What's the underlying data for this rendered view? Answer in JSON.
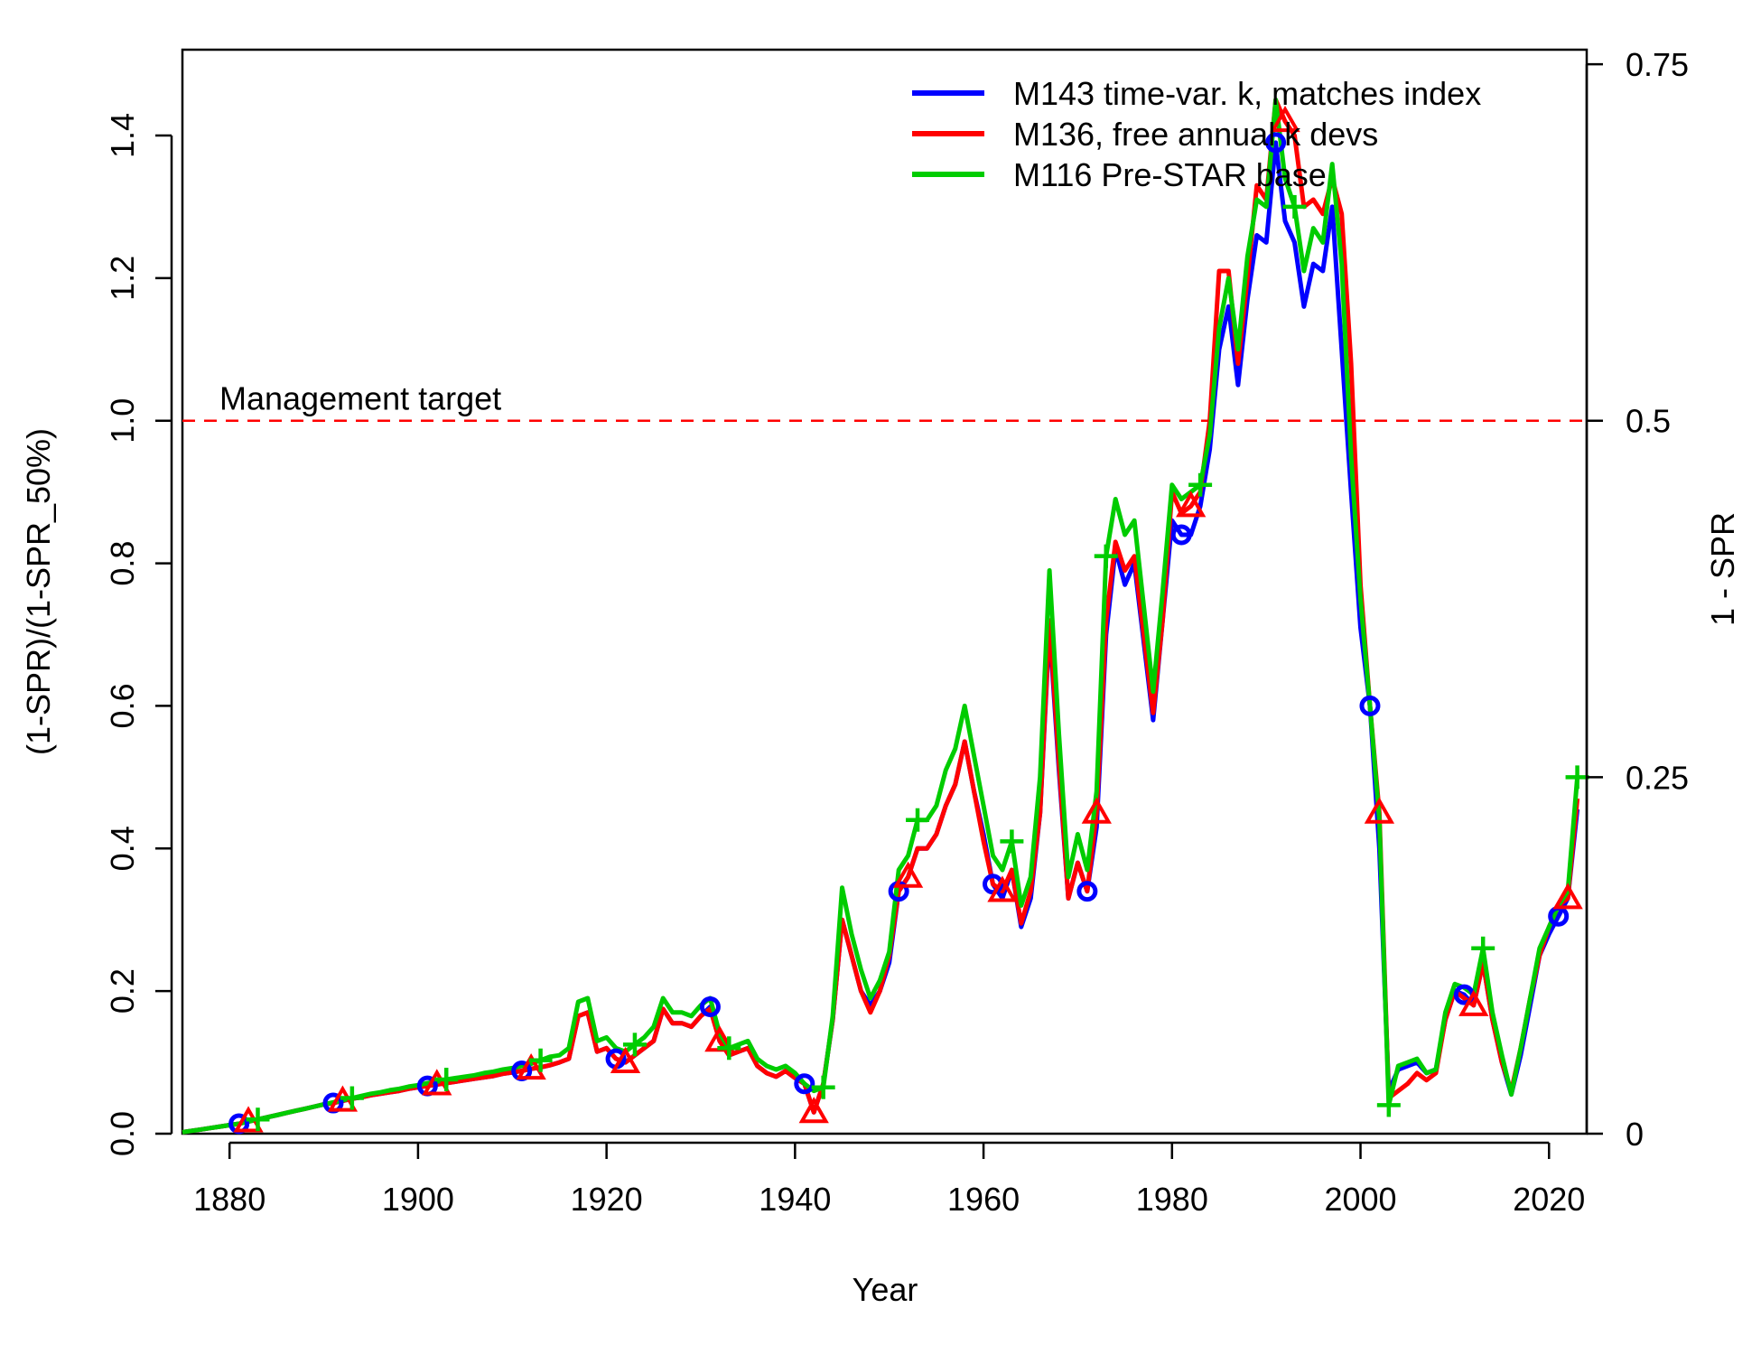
{
  "chart_data": {
    "type": "line",
    "xlabel": "Year",
    "ylabel": "(1-SPR)/(1-SPR_50%)",
    "y2label": "1 - SPR",
    "xlim": [
      1875,
      2024
    ],
    "ylim": [
      0,
      1.5
    ],
    "y2lim": [
      0,
      0.75
    ],
    "x_ticks": [
      "1880",
      "1900",
      "1920",
      "1940",
      "1960",
      "1980",
      "2000",
      "2020"
    ],
    "y_ticks": [
      "0.0",
      "0.2",
      "0.4",
      "0.6",
      "0.8",
      "1.0",
      "1.2",
      "1.4"
    ],
    "y2_ticks": [
      "0",
      "0.25",
      "0.5",
      "0.75"
    ],
    "reference_line": {
      "value": 1.0,
      "label": "Management target",
      "color": "#ff0000",
      "style": "dashed"
    },
    "legend_position": "top-right",
    "x": [
      1875,
      1876,
      1877,
      1878,
      1879,
      1880,
      1881,
      1882,
      1883,
      1884,
      1885,
      1886,
      1887,
      1888,
      1889,
      1890,
      1891,
      1892,
      1893,
      1894,
      1895,
      1896,
      1897,
      1898,
      1899,
      1900,
      1901,
      1902,
      1903,
      1904,
      1905,
      1906,
      1907,
      1908,
      1909,
      1910,
      1911,
      1912,
      1913,
      1914,
      1915,
      1916,
      1917,
      1918,
      1919,
      1920,
      1921,
      1922,
      1923,
      1924,
      1925,
      1926,
      1927,
      1928,
      1929,
      1930,
      1931,
      1932,
      1933,
      1934,
      1935,
      1936,
      1937,
      1938,
      1939,
      1940,
      1941,
      1942,
      1943,
      1944,
      1945,
      1946,
      1947,
      1948,
      1949,
      1950,
      1951,
      1952,
      1953,
      1954,
      1955,
      1956,
      1957,
      1958,
      1959,
      1960,
      1961,
      1962,
      1963,
      1964,
      1965,
      1966,
      1967,
      1968,
      1969,
      1970,
      1971,
      1972,
      1973,
      1974,
      1975,
      1976,
      1977,
      1978,
      1979,
      1980,
      1981,
      1982,
      1983,
      1984,
      1985,
      1986,
      1987,
      1988,
      1989,
      1990,
      1991,
      1992,
      1993,
      1994,
      1995,
      1996,
      1997,
      1998,
      1999,
      2000,
      2001,
      2002,
      2003,
      2004,
      2005,
      2006,
      2007,
      2008,
      2009,
      2010,
      2011,
      2012,
      2013,
      2014,
      2015,
      2016,
      2017,
      2018,
      2019,
      2020,
      2021,
      2022,
      2023
    ],
    "series": [
      {
        "name": "M143 time-var. k, matches index",
        "color": "#0000ff",
        "marker": "circle",
        "values": [
          0.002,
          0.004,
          0.006,
          0.008,
          0.01,
          0.012,
          0.014,
          0.017,
          0.02,
          0.023,
          0.026,
          0.029,
          0.032,
          0.035,
          0.038,
          0.041,
          0.043,
          0.046,
          0.049,
          0.051,
          0.054,
          0.056,
          0.058,
          0.06,
          0.063,
          0.065,
          0.067,
          0.069,
          0.071,
          0.073,
          0.075,
          0.077,
          0.079,
          0.081,
          0.084,
          0.086,
          0.088,
          0.091,
          0.093,
          0.096,
          0.1,
          0.105,
          0.165,
          0.17,
          0.115,
          0.12,
          0.105,
          0.1,
          0.11,
          0.12,
          0.13,
          0.175,
          0.155,
          0.155,
          0.15,
          0.165,
          0.178,
          0.13,
          0.11,
          0.115,
          0.12,
          0.095,
          0.085,
          0.08,
          0.088,
          0.078,
          0.07,
          0.03,
          0.07,
          0.16,
          0.3,
          0.25,
          0.2,
          0.18,
          0.2,
          0.24,
          0.34,
          0.36,
          0.4,
          0.4,
          0.42,
          0.46,
          0.49,
          0.55,
          0.48,
          0.42,
          0.35,
          0.33,
          0.37,
          0.29,
          0.33,
          0.45,
          0.71,
          0.51,
          0.33,
          0.38,
          0.34,
          0.43,
          0.7,
          0.82,
          0.77,
          0.8,
          0.69,
          0.58,
          0.72,
          0.86,
          0.84,
          0.84,
          0.88,
          0.96,
          1.1,
          1.16,
          1.05,
          1.17,
          1.26,
          1.25,
          1.39,
          1.28,
          1.25,
          1.16,
          1.22,
          1.21,
          1.3,
          1.1,
          0.9,
          0.71,
          0.6,
          0.4,
          0.06,
          0.09,
          0.095,
          0.1,
          0.085,
          0.09,
          0.16,
          0.2,
          0.195,
          0.18,
          0.24,
          0.16,
          0.1,
          0.055,
          0.11,
          0.18,
          0.25,
          0.28,
          0.305,
          0.33,
          0.455
        ]
      },
      {
        "name": "M136, free annual k devs",
        "color": "#ff0000",
        "marker": "triangle",
        "values": [
          0.002,
          0.004,
          0.006,
          0.008,
          0.01,
          0.012,
          0.014,
          0.017,
          0.02,
          0.023,
          0.026,
          0.029,
          0.032,
          0.035,
          0.038,
          0.041,
          0.043,
          0.046,
          0.049,
          0.051,
          0.054,
          0.056,
          0.058,
          0.06,
          0.063,
          0.065,
          0.067,
          0.069,
          0.071,
          0.073,
          0.075,
          0.077,
          0.079,
          0.081,
          0.084,
          0.086,
          0.088,
          0.091,
          0.093,
          0.096,
          0.1,
          0.105,
          0.165,
          0.17,
          0.115,
          0.12,
          0.105,
          0.1,
          0.11,
          0.12,
          0.13,
          0.175,
          0.155,
          0.155,
          0.15,
          0.165,
          0.175,
          0.13,
          0.11,
          0.115,
          0.12,
          0.095,
          0.085,
          0.08,
          0.088,
          0.078,
          0.07,
          0.03,
          0.07,
          0.16,
          0.3,
          0.25,
          0.2,
          0.17,
          0.2,
          0.25,
          0.34,
          0.36,
          0.4,
          0.4,
          0.42,
          0.46,
          0.49,
          0.55,
          0.48,
          0.41,
          0.35,
          0.34,
          0.37,
          0.295,
          0.34,
          0.45,
          0.72,
          0.52,
          0.33,
          0.38,
          0.34,
          0.45,
          0.72,
          0.83,
          0.79,
          0.81,
          0.7,
          0.59,
          0.72,
          0.9,
          0.87,
          0.88,
          0.9,
          1.0,
          1.21,
          1.21,
          1.08,
          1.2,
          1.33,
          1.31,
          1.45,
          1.42,
          1.4,
          1.3,
          1.31,
          1.29,
          1.34,
          1.29,
          1.08,
          0.77,
          0.6,
          0.45,
          0.05,
          0.06,
          0.07,
          0.085,
          0.075,
          0.085,
          0.16,
          0.2,
          0.19,
          0.18,
          0.24,
          0.16,
          0.1,
          0.06,
          0.12,
          0.19,
          0.25,
          0.29,
          0.32,
          0.33,
          0.47
        ]
      },
      {
        "name": "M116 Pre-STAR base",
        "color": "#00cc00",
        "marker": "plus",
        "values": [
          0.002,
          0.004,
          0.006,
          0.008,
          0.01,
          0.012,
          0.014,
          0.017,
          0.02,
          0.023,
          0.026,
          0.029,
          0.032,
          0.035,
          0.038,
          0.041,
          0.044,
          0.047,
          0.05,
          0.053,
          0.056,
          0.058,
          0.061,
          0.063,
          0.066,
          0.068,
          0.071,
          0.073,
          0.076,
          0.078,
          0.08,
          0.082,
          0.085,
          0.087,
          0.09,
          0.092,
          0.095,
          0.098,
          0.103,
          0.108,
          0.11,
          0.12,
          0.185,
          0.19,
          0.13,
          0.135,
          0.12,
          0.115,
          0.125,
          0.135,
          0.15,
          0.19,
          0.17,
          0.17,
          0.165,
          0.18,
          0.19,
          0.14,
          0.12,
          0.125,
          0.13,
          0.105,
          0.095,
          0.09,
          0.095,
          0.085,
          0.07,
          0.06,
          0.065,
          0.165,
          0.345,
          0.28,
          0.23,
          0.19,
          0.215,
          0.255,
          0.37,
          0.39,
          0.44,
          0.44,
          0.46,
          0.51,
          0.54,
          0.6,
          0.53,
          0.46,
          0.39,
          0.37,
          0.41,
          0.32,
          0.36,
          0.5,
          0.79,
          0.56,
          0.36,
          0.42,
          0.37,
          0.48,
          0.81,
          0.89,
          0.84,
          0.86,
          0.74,
          0.62,
          0.76,
          0.91,
          0.89,
          0.9,
          0.91,
          0.98,
          1.13,
          1.2,
          1.1,
          1.23,
          1.31,
          1.3,
          1.45,
          1.34,
          1.3,
          1.21,
          1.27,
          1.25,
          1.36,
          1.22,
          0.95,
          0.75,
          0.6,
          0.44,
          0.04,
          0.095,
          0.1,
          0.105,
          0.085,
          0.09,
          0.17,
          0.21,
          0.205,
          0.195,
          0.26,
          0.17,
          0.11,
          0.055,
          0.12,
          0.19,
          0.26,
          0.29,
          0.32,
          0.34,
          0.5
        ]
      }
    ]
  }
}
